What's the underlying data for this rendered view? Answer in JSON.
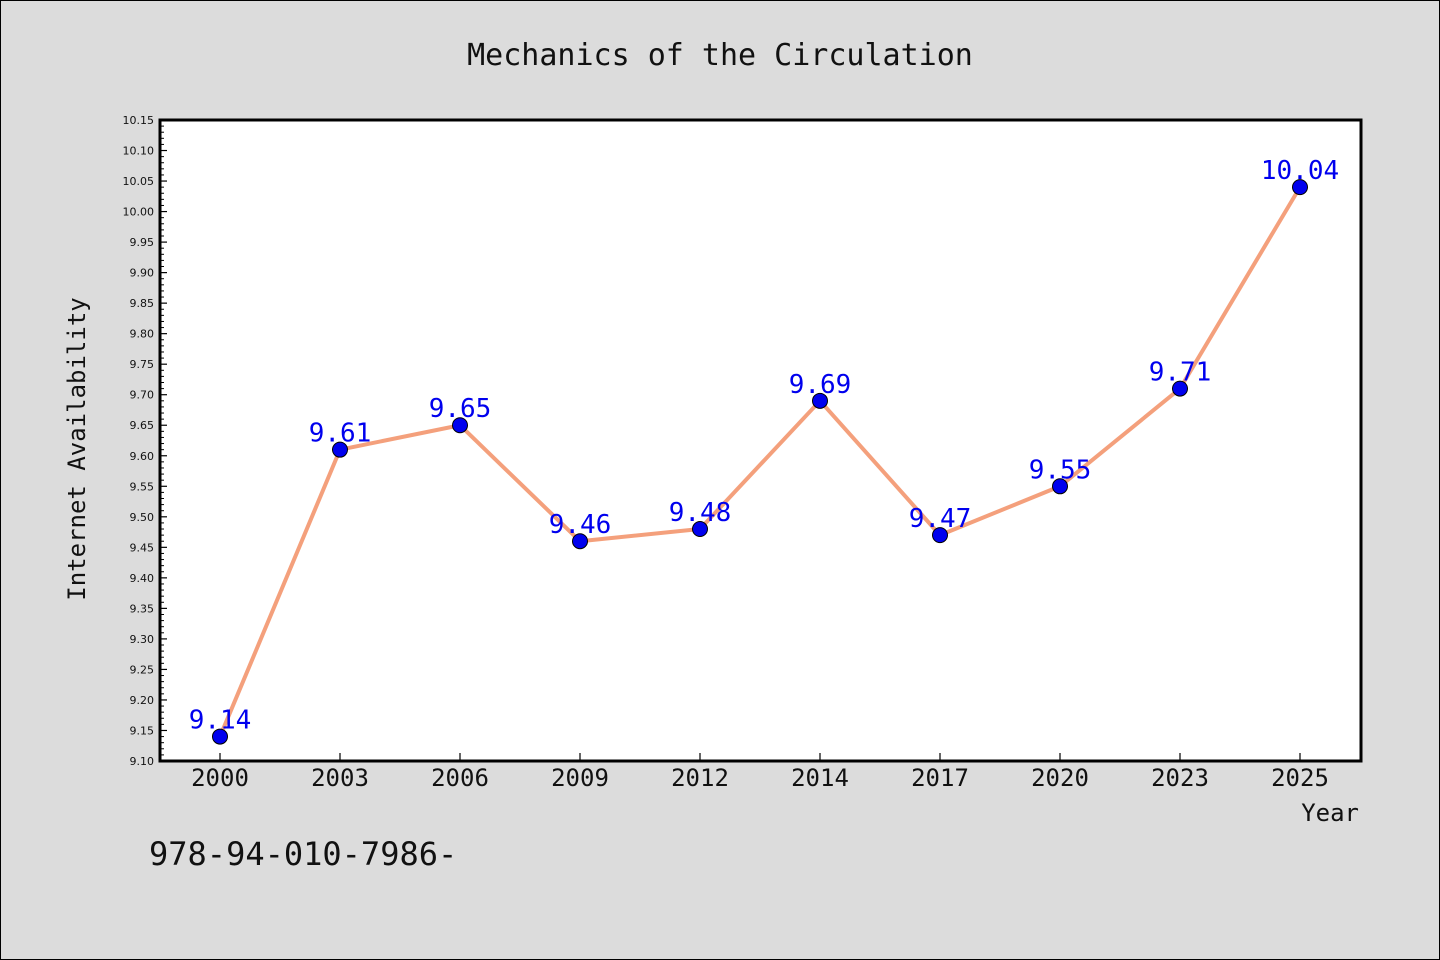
{
  "chart_data": {
    "type": "line",
    "title": "Mechanics of the Circulation",
    "xlabel": "Year",
    "ylabel": "Internet Availability",
    "categories": [
      "2000",
      "2003",
      "2006",
      "2009",
      "2012",
      "2014",
      "2017",
      "2020",
      "2023",
      "2025"
    ],
    "series": [
      {
        "values": [
          9.14,
          9.61,
          9.65,
          9.46,
          9.48,
          9.69,
          9.47,
          9.55,
          9.71,
          10.04
        ]
      }
    ],
    "data_labels": [
      "9.14",
      "9.61",
      "9.65",
      "9.46",
      "9.48",
      "9.69",
      "9.47",
      "9.55",
      "9.71",
      "10.04"
    ],
    "ylim": [
      9.1,
      10.15
    ],
    "yticks": [
      "9.10",
      "9.15",
      "9.20",
      "9.25",
      "9.30",
      "9.35",
      "9.40",
      "9.45",
      "9.50",
      "9.55",
      "9.60",
      "9.65",
      "9.70",
      "9.75",
      "9.80",
      "9.85",
      "9.90",
      "9.95",
      "10.00",
      "10.05",
      "10.10",
      "10.15"
    ],
    "grid": false,
    "legend": "none",
    "colors": {
      "line": "#f4a07c",
      "marker": "#0000ee",
      "label": "#0000ee",
      "background": "#dcdcdc",
      "plot_background": "#ffffff"
    }
  },
  "footnote": "978-94-010-7986-"
}
